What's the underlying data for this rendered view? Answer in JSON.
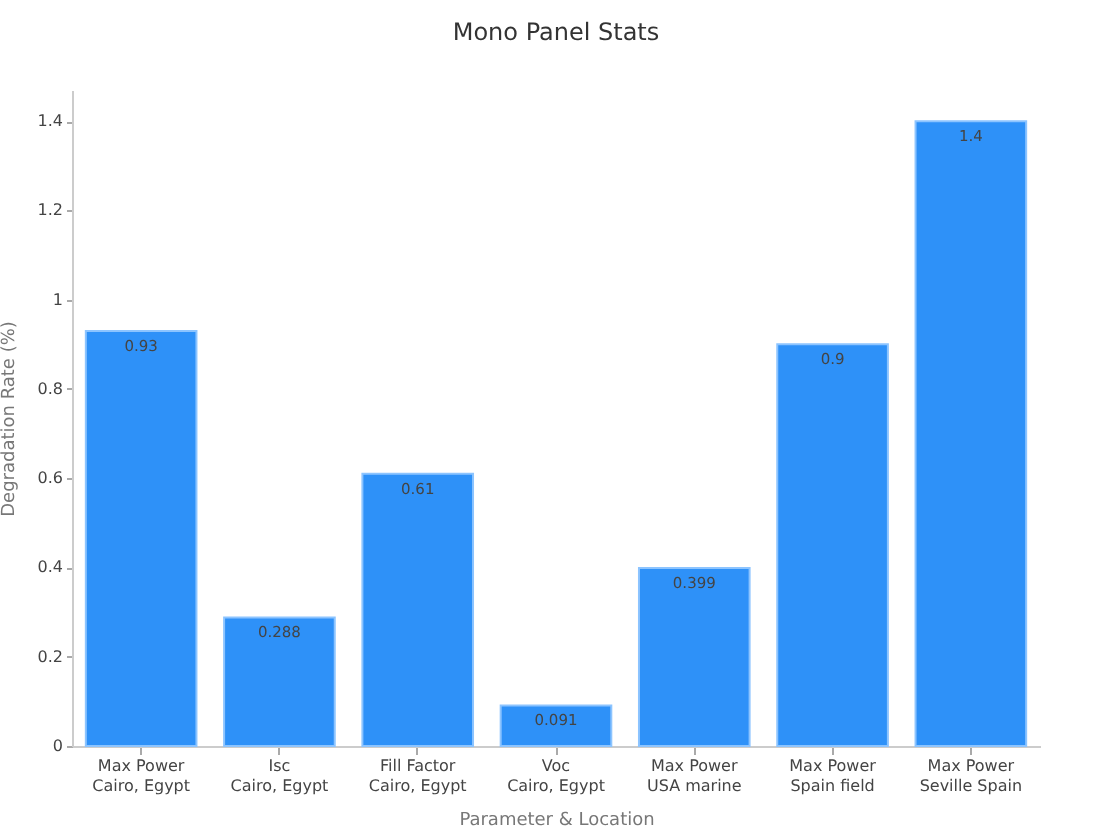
{
  "chart_data": {
    "type": "bar",
    "title": "Mono Panel Stats",
    "xlabel": "Parameter & Location",
    "ylabel": "Degradation Rate (%)",
    "categories": [
      "Max Power\nCairo, Egypt",
      "Isc\nCairo, Egypt",
      "Fill Factor\nCairo, Egypt",
      "Voc\nCairo, Egypt",
      "Max Power\nUSA marine",
      "Max Power\nSpain field",
      "Max Power\nSeville Spain"
    ],
    "values": [
      0.93,
      0.288,
      0.61,
      0.091,
      0.399,
      0.9,
      1.4
    ],
    "color": "#2e91f8",
    "ylim": [
      0,
      1.47
    ],
    "yticks": [
      0,
      0.2,
      0.4,
      0.6,
      0.8,
      1,
      1.2,
      1.4
    ],
    "grid": false,
    "data_labels": true
  }
}
